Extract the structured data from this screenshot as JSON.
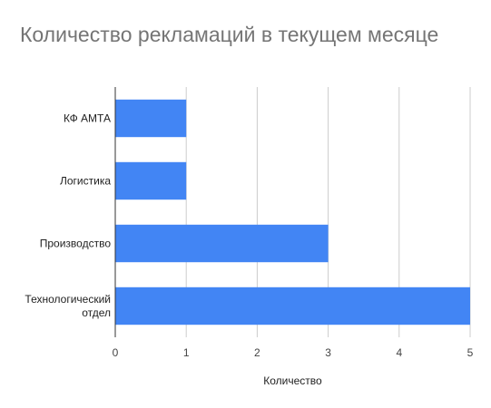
{
  "chart_data": {
    "type": "bar",
    "orientation": "horizontal",
    "title": "Количество рекламаций в текущем месяце",
    "categories": [
      [
        "КФ АМТА"
      ],
      [
        "Логистика"
      ],
      [
        "Производство"
      ],
      [
        "Технологический",
        "отдел"
      ]
    ],
    "values": [
      1,
      1,
      3,
      5
    ],
    "xlabel": "Количество",
    "ylabel": "",
    "xlim": [
      0,
      5
    ],
    "xticks": [
      0,
      1,
      2,
      3,
      4,
      5
    ],
    "grid": true,
    "legend": "none",
    "bar_color": "#4285f4"
  }
}
